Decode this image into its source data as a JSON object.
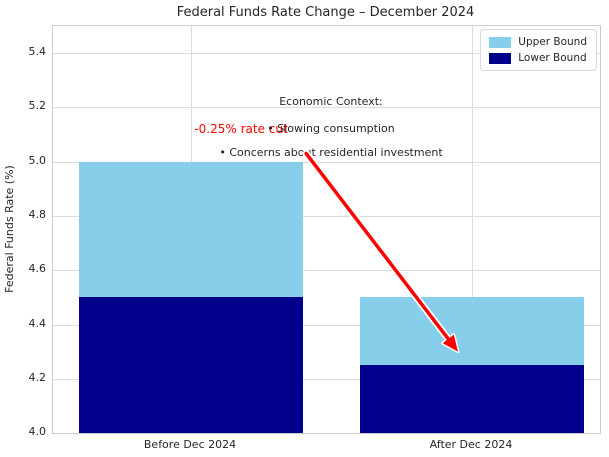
{
  "chart_data": {
    "type": "bar",
    "title": "Federal Funds Rate Change – December 2024",
    "categories": [
      "Before Dec 2024",
      "After Dec 2024"
    ],
    "series": [
      {
        "name": "Upper Bound",
        "color": "#87CEEB",
        "values": [
          5.0,
          4.5
        ]
      },
      {
        "name": "Lower Bound",
        "color": "#00008B",
        "values": [
          4.5,
          4.25
        ]
      }
    ],
    "bar_style": "overlaid-range",
    "xlabel": "",
    "ylabel": "Federal Funds Rate (%)",
    "ylim": [
      4.0,
      5.5
    ],
    "yticks": [
      "4.0",
      "4.2",
      "4.4",
      "4.6",
      "4.8",
      "5.0",
      "5.2",
      "5.4"
    ],
    "grid": true,
    "legend": {
      "position": "upper right",
      "entries": [
        "Upper Bound",
        "Lower Bound"
      ]
    },
    "annotations": [
      {
        "id": "economic-context-heading",
        "text": "Economic Context:",
        "color": "#262626"
      },
      {
        "id": "bullet-slowing-consumption",
        "text": "• Slowing consumption",
        "color": "#262626"
      },
      {
        "id": "bullet-residential-investment",
        "text": "• Concerns about residential investment",
        "color": "#262626"
      },
      {
        "id": "rate-cut-label",
        "text": "-0.25% rate cut",
        "color": "#ff0000"
      }
    ],
    "arrow": {
      "from_value": [
        0.41,
        5.03
      ],
      "to_value": [
        0.95,
        4.3
      ],
      "color": "#ff0000",
      "outline_color": "#ffffff"
    }
  }
}
